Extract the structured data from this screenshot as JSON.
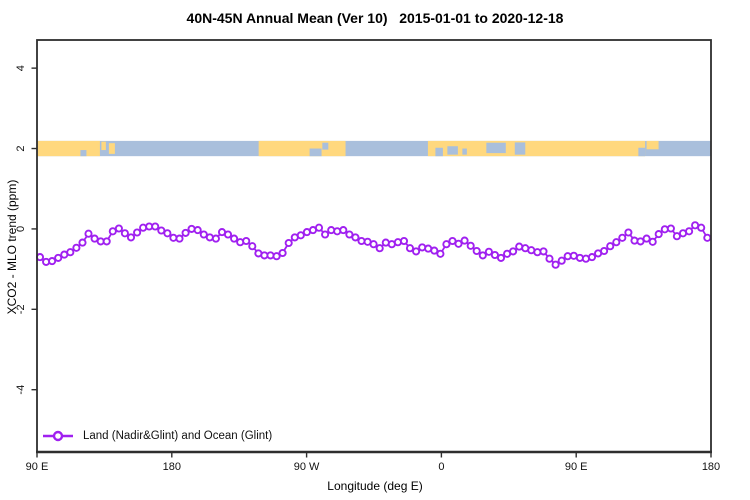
{
  "chart_data": {
    "type": "line",
    "title": "40N-45N Annual Mean (Ver 10)   2015-01-01 to 2020-12-18",
    "xlabel": "Longitude (deg E)",
    "ylabel": "XCO2 - MLO trend (ppm)",
    "xlim": [
      90,
      540
    ],
    "ylim": [
      -5.55,
      4.7
    ],
    "grid": false,
    "legend_position": "bottom-left",
    "x_ticks": [
      {
        "value": 90,
        "label": "90 E"
      },
      {
        "value": 180,
        "label": "180"
      },
      {
        "value": 270,
        "label": "90 W"
      },
      {
        "value": 360,
        "label": "0"
      },
      {
        "value": 450,
        "label": "90 E"
      },
      {
        "value": 540,
        "label": "180"
      }
    ],
    "y_ticks": [
      {
        "value": 4,
        "label": "4"
      },
      {
        "value": 2,
        "label": "2"
      },
      {
        "value": 0,
        "label": "0"
      },
      {
        "value": -2,
        "label": "-2"
      },
      {
        "value": -4,
        "label": "-4"
      }
    ],
    "series": [
      {
        "name": "Land (Nadir&Glint) and Ocean (Glint)",
        "color": "#A020F0",
        "marker": "open-circle",
        "x_start": 92,
        "x_step": 4.05,
        "values": [
          -0.7,
          -0.82,
          -0.8,
          -0.72,
          -0.64,
          -0.58,
          -0.47,
          -0.34,
          -0.12,
          -0.24,
          -0.31,
          -0.31,
          -0.06,
          0.01,
          -0.11,
          -0.21,
          -0.09,
          0.03,
          0.06,
          0.06,
          -0.04,
          -0.11,
          -0.22,
          -0.24,
          -0.1,
          0.0,
          -0.03,
          -0.14,
          -0.21,
          -0.24,
          -0.08,
          -0.14,
          -0.24,
          -0.33,
          -0.3,
          -0.43,
          -0.61,
          -0.66,
          -0.66,
          -0.68,
          -0.6,
          -0.35,
          -0.21,
          -0.16,
          -0.08,
          -0.03,
          0.03,
          -0.14,
          -0.03,
          -0.06,
          -0.03,
          -0.14,
          -0.21,
          -0.3,
          -0.32,
          -0.38,
          -0.48,
          -0.34,
          -0.38,
          -0.33,
          -0.3,
          -0.48,
          -0.56,
          -0.46,
          -0.49,
          -0.54,
          -0.62,
          -0.38,
          -0.3,
          -0.37,
          -0.29,
          -0.42,
          -0.55,
          -0.66,
          -0.57,
          -0.65,
          -0.72,
          -0.62,
          -0.56,
          -0.44,
          -0.48,
          -0.53,
          -0.58,
          -0.56,
          -0.74,
          -0.89,
          -0.79,
          -0.68,
          -0.67,
          -0.72,
          -0.74,
          -0.7,
          -0.61,
          -0.55,
          -0.43,
          -0.33,
          -0.22,
          -0.09,
          -0.29,
          -0.31,
          -0.24,
          -0.32,
          -0.13,
          -0.01,
          0.01,
          -0.18,
          -0.11,
          -0.06,
          0.09,
          0.03,
          -0.22
        ]
      }
    ],
    "map_strip": {
      "center_value": 2,
      "half_height_value": 0.19,
      "land_color": "#FFD87E",
      "ocean_color": "#A9BFDC",
      "land_segments": [
        {
          "from": 90,
          "to": 132
        },
        {
          "from": 133,
          "to": 136,
          "top": 0.05,
          "h": 0.55
        },
        {
          "from": 138,
          "to": 142,
          "top": 0.15,
          "h": 0.7
        },
        {
          "from": 238,
          "to": 296
        },
        {
          "from": 351,
          "to": 496
        },
        {
          "from": 497,
          "to": 505,
          "top": 0,
          "h": 0.55
        }
      ],
      "water_patches": [
        {
          "from": 119,
          "to": 123,
          "top": 0.6,
          "h": 0.4
        },
        {
          "from": 272,
          "to": 280,
          "top": 0.5,
          "h": 0.5
        },
        {
          "from": 280.5,
          "to": 284.5,
          "top": 0.12,
          "h": 0.45
        },
        {
          "from": 356,
          "to": 361,
          "top": 0.45,
          "h": 0.55
        },
        {
          "from": 364,
          "to": 371,
          "top": 0.35,
          "h": 0.55
        },
        {
          "from": 374,
          "to": 377,
          "top": 0.5,
          "h": 0.4
        },
        {
          "from": 390,
          "to": 403,
          "top": 0.12,
          "h": 0.68
        },
        {
          "from": 409,
          "to": 416,
          "top": 0.1,
          "h": 0.8
        },
        {
          "from": 491.5,
          "to": 496,
          "top": 0.45,
          "h": 0.55
        }
      ]
    }
  }
}
